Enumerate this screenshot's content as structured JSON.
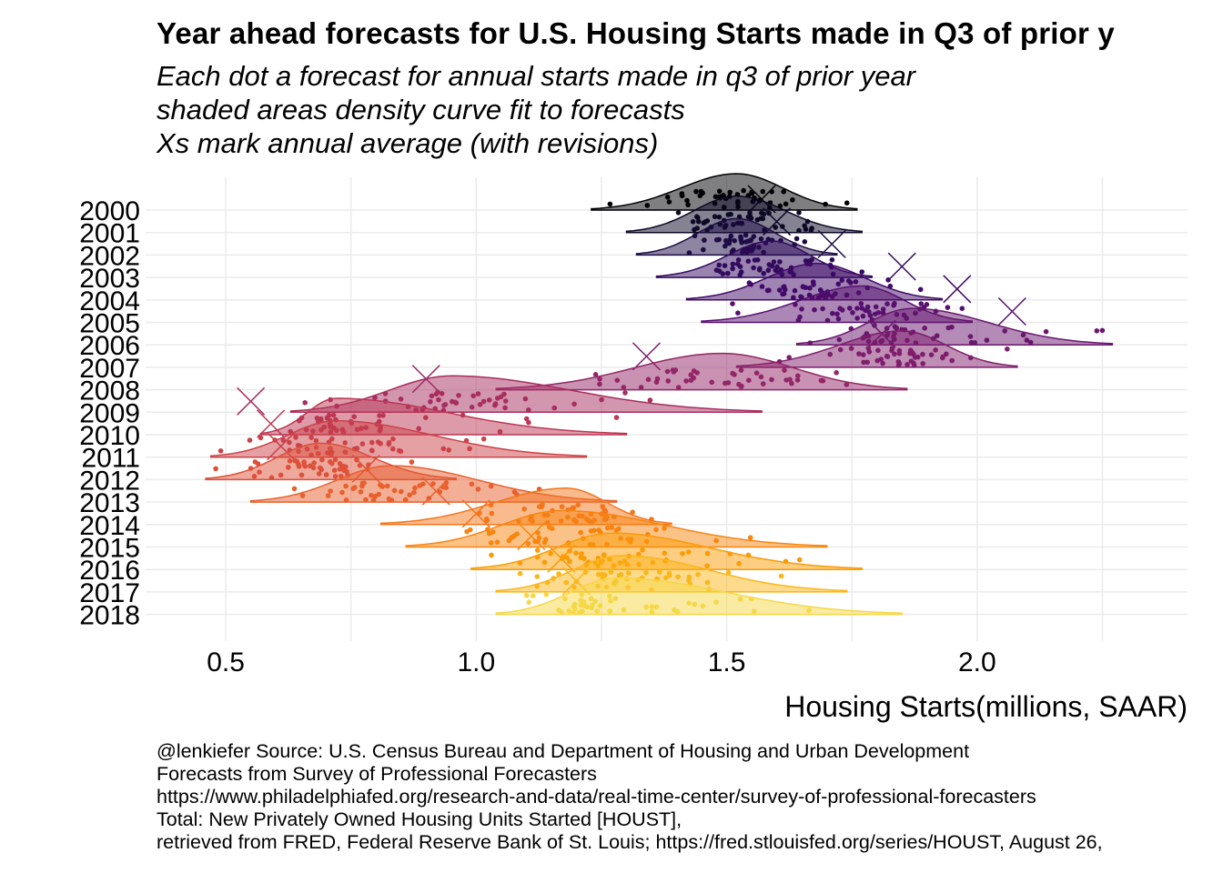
{
  "title": "Year ahead forecasts for U.S. Housing Starts made in Q3 of prior y",
  "subtitle_lines": [
    "Each dot a forecast for annual starts made in q3 of prior year",
    "shaded areas density curve fit to forecasts",
    "Xs mark annual average (with revisions)"
  ],
  "caption_lines": [
    "@lenkiefer Source: U.S. Census Bureau and Department of Housing and Urban Development",
    "Forecasts from Survey of Professional Forecasters",
    "https://www.philadelphiafed.org/research-and-data/real-time-center/survey-of-professional-forecasters",
    "Total: New Privately Owned Housing Units Started [HOUST],",
    "retrieved from FRED, Federal Reserve Bank of St. Louis; https://fred.stlouisfed.org/series/HOUST, August 26,"
  ],
  "chart_data": {
    "type": "ridgeline",
    "xlabel": "Housing Starts(millions, SAAR)",
    "xlim": [
      0.34,
      2.42
    ],
    "x_ticks": [
      0.5,
      1.0,
      1.5,
      2.0
    ],
    "x_tick_labels": [
      "0.5",
      "1.0",
      "1.5",
      "2.0"
    ],
    "grid": true,
    "years": [
      {
        "year": "2000",
        "peak": 1.52,
        "min": 1.23,
        "max": 1.76,
        "actual": 1.57,
        "color": "#000004"
      },
      {
        "year": "2001",
        "peak": 1.52,
        "min": 1.3,
        "max": 1.77,
        "actual": 1.6,
        "color": "#0c0826"
      },
      {
        "year": "2002",
        "peak": 1.52,
        "min": 1.32,
        "max": 1.72,
        "actual": 1.71,
        "color": "#1e0c45"
      },
      {
        "year": "2003",
        "peak": 1.59,
        "min": 1.36,
        "max": 1.79,
        "actual": 1.85,
        "color": "#320a5e"
      },
      {
        "year": "2004",
        "peak": 1.68,
        "min": 1.42,
        "max": 1.93,
        "actual": 1.96,
        "color": "#420a68"
      },
      {
        "year": "2005",
        "peak": 1.77,
        "min": 1.45,
        "max": 1.99,
        "actual": 2.07,
        "color": "#57106e"
      },
      {
        "year": "2006",
        "peak": 1.87,
        "min": 1.64,
        "max": 2.27,
        "actual": 1.81,
        "color": "#6a176e"
      },
      {
        "year": "2007",
        "peak": 1.85,
        "min": 1.52,
        "max": 2.08,
        "actual": 1.34,
        "color": "#7f1e6c"
      },
      {
        "year": "2008",
        "peak": 1.49,
        "min": 1.04,
        "max": 1.86,
        "actual": 0.9,
        "color": "#932667"
      },
      {
        "year": "2009",
        "peak": 0.95,
        "min": 0.63,
        "max": 1.57,
        "actual": 0.55,
        "color": "#a82e5f"
      },
      {
        "year": "2010",
        "peak": 0.72,
        "min": 0.57,
        "max": 1.3,
        "actual": 0.59,
        "color": "#bc3754"
      },
      {
        "year": "2011",
        "peak": 0.72,
        "min": 0.47,
        "max": 1.22,
        "actual": 0.61,
        "color": "#cc4248"
      },
      {
        "year": "2012",
        "peak": 0.69,
        "min": 0.46,
        "max": 0.96,
        "actual": 0.78,
        "color": "#dd513a"
      },
      {
        "year": "2013",
        "peak": 0.83,
        "min": 0.55,
        "max": 1.28,
        "actual": 0.92,
        "color": "#e8602d"
      },
      {
        "year": "2014",
        "peak": 1.18,
        "min": 0.81,
        "max": 1.39,
        "actual": 1.0,
        "color": "#f3761b"
      },
      {
        "year": "2015",
        "peak": 1.17,
        "min": 0.86,
        "max": 1.7,
        "actual": 1.11,
        "color": "#f8850f"
      },
      {
        "year": "2016",
        "peak": 1.27,
        "min": 0.99,
        "max": 1.77,
        "actual": 1.17,
        "color": "#fb9b06"
      },
      {
        "year": "2017",
        "peak": 1.29,
        "min": 1.04,
        "max": 1.74,
        "actual": 1.2,
        "color": "#fbb61a"
      },
      {
        "year": "2018",
        "peak": 1.28,
        "min": 1.04,
        "max": 1.85,
        "actual": null,
        "color": "#f6d746"
      }
    ]
  }
}
